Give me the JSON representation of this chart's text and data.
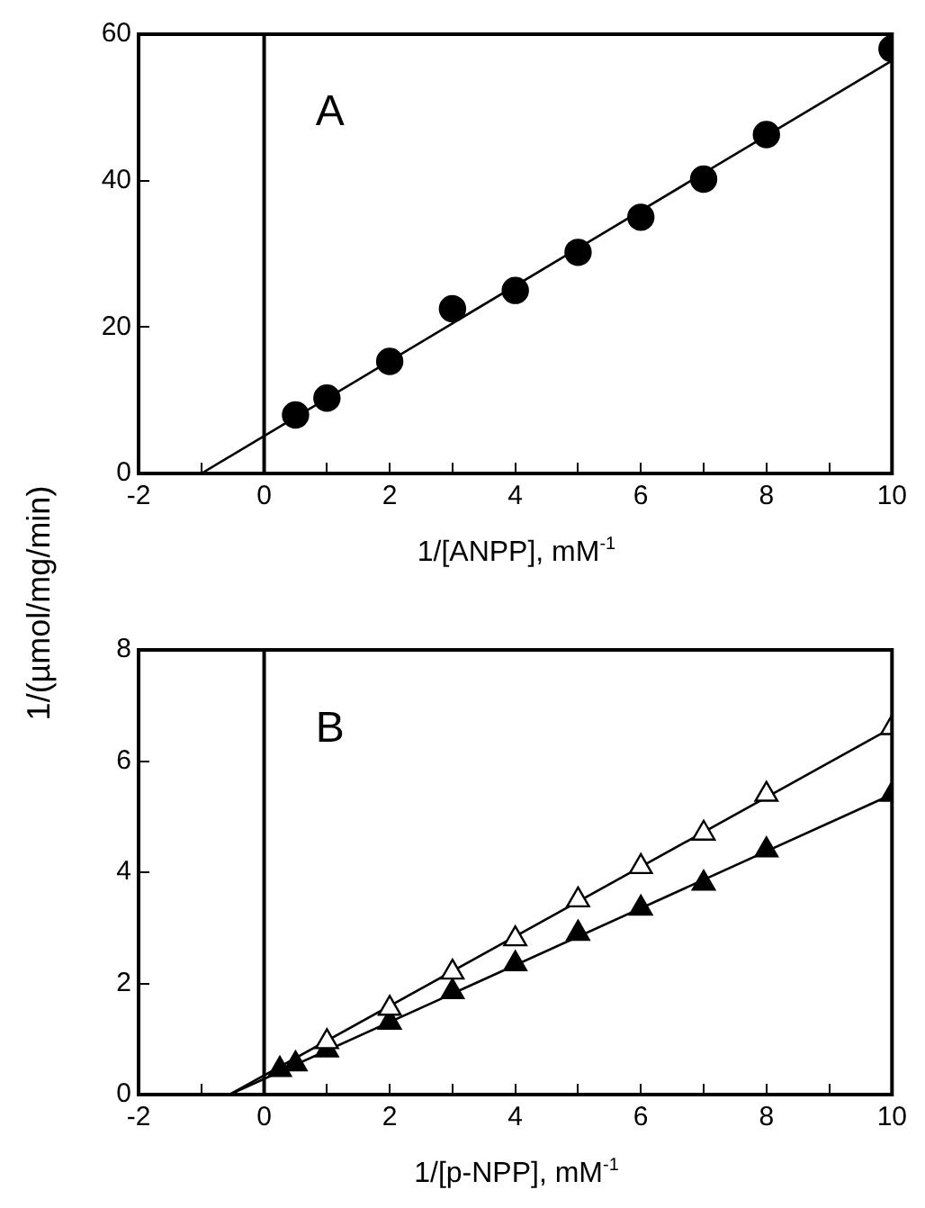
{
  "chart_data": [
    {
      "type": "scatter",
      "ylabel": "1/(µmol/mg/min)",
      "xlabel": "1/[ANPP], mM$^{-1}$",
      "annotations": [
        "A"
      ],
      "marker": "circle",
      "grid": false,
      "legend": false,
      "xlim": [
        -2,
        10
      ],
      "xticks": [
        -2,
        {
          "value": -1,
          "label": null
        },
        0,
        {
          "value": 1,
          "label": null
        },
        2,
        {
          "value": 3,
          "label": null
        },
        4,
        {
          "value": 5,
          "label": null
        },
        6,
        {
          "value": 7,
          "label": null
        },
        8,
        {
          "value": 9,
          "label": null
        },
        10
      ],
      "ylim": [
        0,
        60
      ],
      "yticks": [
        0,
        20,
        40,
        60
      ],
      "ref_lines": [
        {
          "axis": "x",
          "value": 0,
          "color": "#000000"
        }
      ],
      "series": [
        {
          "color": "#000000",
          "x": [
            0.5,
            1,
            2,
            3,
            4,
            5,
            6,
            7,
            8,
            10
          ],
          "values": [
            8,
            10.3,
            15.3,
            22.5,
            25,
            30.2,
            35,
            40.2,
            46.3,
            58
          ]
        },
        {
          "type": "line",
          "color": "#000000",
          "marker": "none",
          "x": [
            -1,
            10
          ],
          "values": [
            0,
            56.4
          ]
        }
      ]
    },
    {
      "type": "scatter",
      "xlabel": "1/[p-NPP], mM$^{-1}$",
      "annotations": [
        "B"
      ],
      "marker": "triangle",
      "grid": false,
      "legend": false,
      "xlim": [
        -2,
        10
      ],
      "xticks": [
        -2,
        {
          "value": -1,
          "label": null
        },
        0,
        {
          "value": 1,
          "label": null
        },
        2,
        {
          "value": 3,
          "label": null
        },
        4,
        {
          "value": 5,
          "label": null
        },
        6,
        {
          "value": 7,
          "label": null
        },
        8,
        {
          "value": 9,
          "label": null
        },
        10
      ],
      "ylim": [
        0,
        8
      ],
      "yticks": [
        0,
        2,
        4,
        6,
        8
      ],
      "ref_lines": [
        {
          "axis": "x",
          "value": 0,
          "color": "#000000"
        }
      ],
      "series": [
        {
          "type": "line",
          "color": "#000000",
          "marker": "none",
          "x": [
            -0.55,
            10
          ],
          "values": [
            0,
            6.6
          ]
        },
        {
          "type": "line",
          "color": "#000000",
          "marker": "none",
          "x": [
            -0.55,
            10
          ],
          "values": [
            0,
            5.4
          ]
        },
        {
          "color": "#ffffff",
          "x": [
            1,
            2,
            3,
            4,
            5,
            6,
            7,
            8,
            10
          ],
          "values": [
            0.95,
            1.55,
            2.2,
            2.8,
            3.5,
            4.1,
            4.7,
            5.4,
            6.6
          ]
        },
        {
          "color": "#000000",
          "x": [
            0.25,
            0.5,
            1,
            2,
            3,
            4,
            5,
            6,
            7,
            8,
            10
          ],
          "values": [
            0.45,
            0.55,
            0.8,
            1.3,
            1.85,
            2.35,
            2.9,
            3.35,
            3.8,
            4.4,
            5.4
          ]
        }
      ]
    }
  ]
}
